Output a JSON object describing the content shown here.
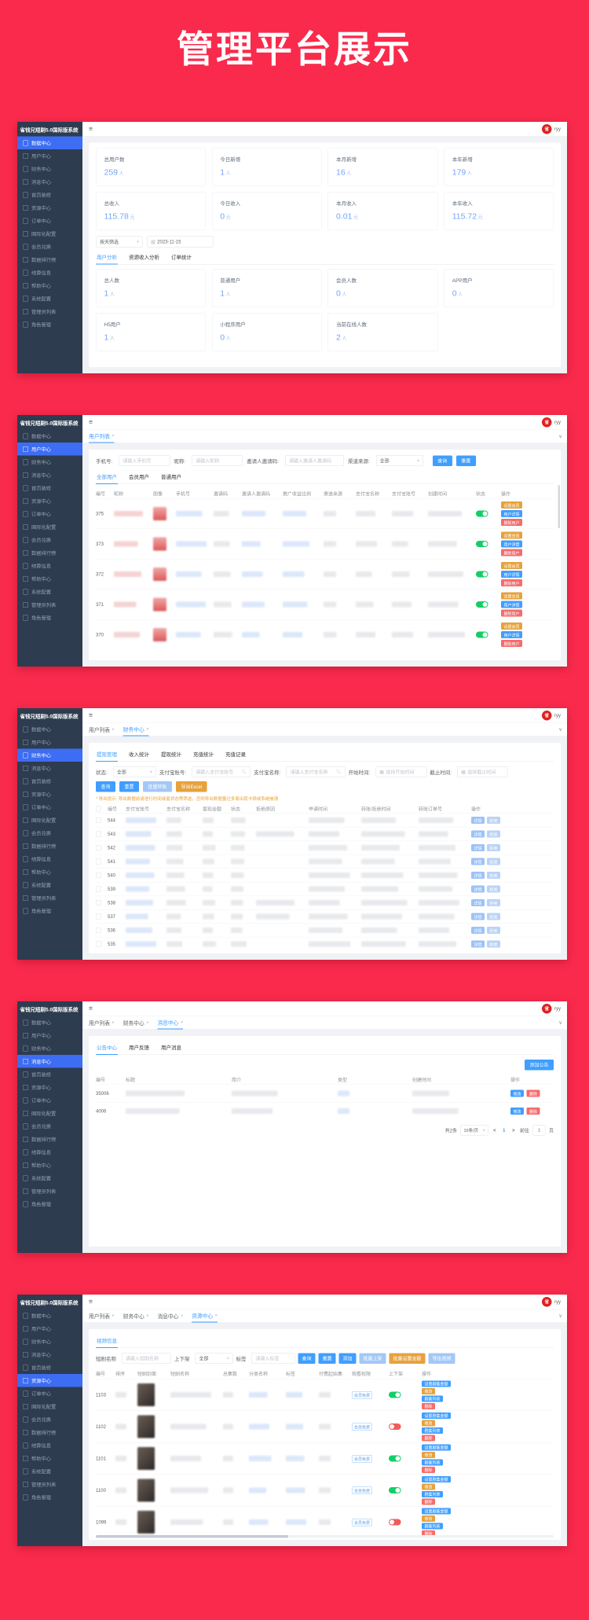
{
  "page": {
    "title": "管理平台展示"
  },
  "app": {
    "name": "省钱兄短剧5.0国际版系统",
    "avatar_char": "省",
    "username": "ryy",
    "hamburger_icon": "≡",
    "tab_close_icon": "×",
    "tab_caret_icon": "∨"
  },
  "sidebar": {
    "items": [
      {
        "label": "数据中心",
        "icon": "data-center-icon"
      },
      {
        "label": "用户中心",
        "icon": "user-center-icon"
      },
      {
        "label": "财务中心",
        "icon": "finance-center-icon"
      },
      {
        "label": "消息中心",
        "icon": "message-center-icon"
      },
      {
        "label": "首页装修",
        "icon": "home-decor-icon"
      },
      {
        "label": "资源中心",
        "icon": "resource-center-icon"
      },
      {
        "label": "订单中心",
        "icon": "order-center-icon"
      },
      {
        "label": "国际化配置",
        "icon": "i18n-config-icon"
      },
      {
        "label": "会员兑换",
        "icon": "member-exchange-icon"
      },
      {
        "label": "数据排行榜",
        "icon": "ranking-icon"
      },
      {
        "label": "结算信息",
        "icon": "settlement-icon"
      },
      {
        "label": "帮助中心",
        "icon": "help-center-icon"
      },
      {
        "label": "系统配置",
        "icon": "system-config-icon"
      },
      {
        "label": "管理员列表",
        "icon": "admin-list-icon"
      },
      {
        "label": "角色管理",
        "icon": "role-manage-icon"
      }
    ]
  },
  "panel1": {
    "active_sidebar": 0,
    "stats_row1": [
      {
        "label": "总用户数",
        "value": "259",
        "unit": "人"
      },
      {
        "label": "今日新增",
        "value": "1",
        "unit": "人"
      },
      {
        "label": "本月新增",
        "value": "16",
        "unit": "人"
      },
      {
        "label": "本年新增",
        "value": "179",
        "unit": "人"
      }
    ],
    "stats_row2": [
      {
        "label": "总收入",
        "value": "115.78",
        "unit": "元"
      },
      {
        "label": "今日收入",
        "value": "0",
        "unit": "元"
      },
      {
        "label": "本月收入",
        "value": "0.01",
        "unit": "元"
      },
      {
        "label": "本年收入",
        "value": "115.72",
        "unit": "元"
      }
    ],
    "range_select": "按天筛选",
    "date_value": "2023-11-15",
    "tabs": [
      "用户分析",
      "资源收入分析",
      "订单统计"
    ],
    "stats_row3": [
      {
        "label": "总人数",
        "value": "1",
        "unit": "人"
      },
      {
        "label": "普通用户",
        "value": "1",
        "unit": "人"
      },
      {
        "label": "会员人数",
        "value": "0",
        "unit": "人"
      },
      {
        "label": "APP用户",
        "value": "0",
        "unit": "人"
      }
    ],
    "stats_row4": [
      {
        "label": "H5用户",
        "value": "1",
        "unit": "人"
      },
      {
        "label": "小程序用户",
        "value": "0",
        "unit": "人"
      },
      {
        "label": "当前在线人数",
        "value": "2",
        "unit": "人"
      }
    ]
  },
  "panel2": {
    "active_sidebar": 1,
    "tabs": [
      "用户列表"
    ],
    "filters": [
      {
        "label": "手机号:",
        "placeholder": "请输入手机号"
      },
      {
        "label": "昵称:",
        "placeholder": "请输入昵称"
      },
      {
        "label": "邀请人邀请码:",
        "placeholder": "请输入邀请人邀请码"
      }
    ],
    "source_filter": {
      "label": "渠道来源:",
      "value": "全部"
    },
    "buttons": [
      "查询",
      "重置"
    ],
    "subtabs": [
      "全部用户",
      "会员用户",
      "普通用户"
    ],
    "columns": [
      "编号",
      "昵称",
      "图像",
      "手机号",
      "邀请码",
      "邀请人邀请码",
      "推广收益比例",
      "渠道来源",
      "支付宝名称",
      "支付宝账号",
      "创建时间",
      "状态",
      "操作"
    ],
    "rows": [
      {
        "id": "375",
        "status_on": true
      },
      {
        "id": "373",
        "status_on": true
      },
      {
        "id": "372",
        "status_on": true
      },
      {
        "id": "371",
        "status_on": true
      },
      {
        "id": "370",
        "status_on": true
      }
    ],
    "row_actions": [
      "设置会员",
      "用户详情",
      "删除用户"
    ]
  },
  "panel3": {
    "active_sidebar": 2,
    "tabs": [
      "用户列表",
      "财务中心"
    ],
    "subtabs": [
      "提现管理",
      "收入统计",
      "提现统计",
      "充值统计",
      "充值记录"
    ],
    "status_filter": {
      "label": "状态:",
      "value": "全部"
    },
    "filters": [
      {
        "label": "支付宝账号:",
        "placeholder": "请输入支付宝账号"
      },
      {
        "label": "支付宝名称:",
        "placeholder": "请输入支付宝名称"
      }
    ],
    "date_filters": [
      {
        "label": "开始时间:",
        "placeholder": "选择开始时间"
      },
      {
        "label": "截止时间:",
        "placeholder": "选择截止时间"
      }
    ],
    "buttons": [
      {
        "label": "查询",
        "style": "blue"
      },
      {
        "label": "重置",
        "style": "blue"
      },
      {
        "label": "批量转账",
        "style": "lite"
      },
      {
        "label": "导出Excel",
        "style": "orange"
      }
    ],
    "notice": "* 导出提示: 导出数据前请进行时间或者状态等筛选，否则导出数据量过多易出现卡顿或系统崩溃",
    "columns": [
      "编号",
      "支付宝账号",
      "支付宝名称",
      "提现金额",
      "状态",
      "拒绝原因",
      "申请时间",
      "转账/拒绝时间",
      "转账订单号",
      "操作"
    ],
    "rows": [
      {
        "id": "544"
      },
      {
        "id": "543"
      },
      {
        "id": "542"
      },
      {
        "id": "541"
      },
      {
        "id": "540"
      },
      {
        "id": "539"
      },
      {
        "id": "538"
      },
      {
        "id": "537"
      },
      {
        "id": "536"
      },
      {
        "id": "535"
      }
    ],
    "row_actions": [
      "详情",
      "拒绝"
    ]
  },
  "panel4": {
    "active_sidebar": 3,
    "tabs": [
      "用户列表",
      "财务中心",
      "消息中心"
    ],
    "subtabs": [
      "公告中心",
      "用户反馈",
      "用户消息"
    ],
    "add_button": "添加公告",
    "columns": [
      "编号",
      "标题",
      "简介",
      "类型",
      "创建时间",
      "操作"
    ],
    "rows": [
      {
        "id": "35006"
      },
      {
        "id": "4006"
      }
    ],
    "row_actions": [
      "修改",
      "删除"
    ],
    "pagination": {
      "total": "共2条",
      "per_page": "10条/页",
      "prev": "<",
      "page": "1",
      "next": ">",
      "goto": "前往",
      "goto_page": "1",
      "unit": "页"
    }
  },
  "panel5": {
    "active_sidebar": 5,
    "tabs": [
      "用户列表",
      "财务中心",
      "消息中心",
      "资源中心"
    ],
    "subtabs": [
      "视频信息"
    ],
    "filters": [
      {
        "label": "短剧名称",
        "placeholder": "请输入短剧名称"
      },
      {
        "label": "标签",
        "placeholder": "请输入标签"
      }
    ],
    "updown_filter": {
      "label": "上下架",
      "value": "全部"
    },
    "buttons": [
      {
        "label": "查询",
        "style": "blue"
      },
      {
        "label": "重置",
        "style": "blue"
      },
      {
        "label": "添加",
        "style": "blue"
      },
      {
        "label": "批量上架",
        "style": "lite"
      },
      {
        "label": "批量设置金额",
        "style": "orange"
      },
      {
        "label": "导出视频",
        "style": "lite"
      }
    ],
    "columns": [
      "编号",
      "排序",
      "短剧封面",
      "短剧名称",
      "总集数",
      "分类名称",
      "标签",
      "付费起始集",
      "观看权限",
      "上下架",
      "操作"
    ],
    "member_chip": "会员免费",
    "rows": [
      {
        "id": "1103",
        "status_on": true
      },
      {
        "id": "1102",
        "status_on": false
      },
      {
        "id": "1101",
        "status_on": true
      },
      {
        "id": "1100",
        "status_on": true
      },
      {
        "id": "1099",
        "status_on": false
      }
    ],
    "row_actions": [
      {
        "label": "设置剧集金额",
        "style": "blue"
      },
      {
        "label": "修改",
        "style": "orange"
      },
      {
        "label": "剧集列表",
        "style": "blue"
      },
      {
        "label": "删除",
        "style": "red"
      }
    ]
  }
}
